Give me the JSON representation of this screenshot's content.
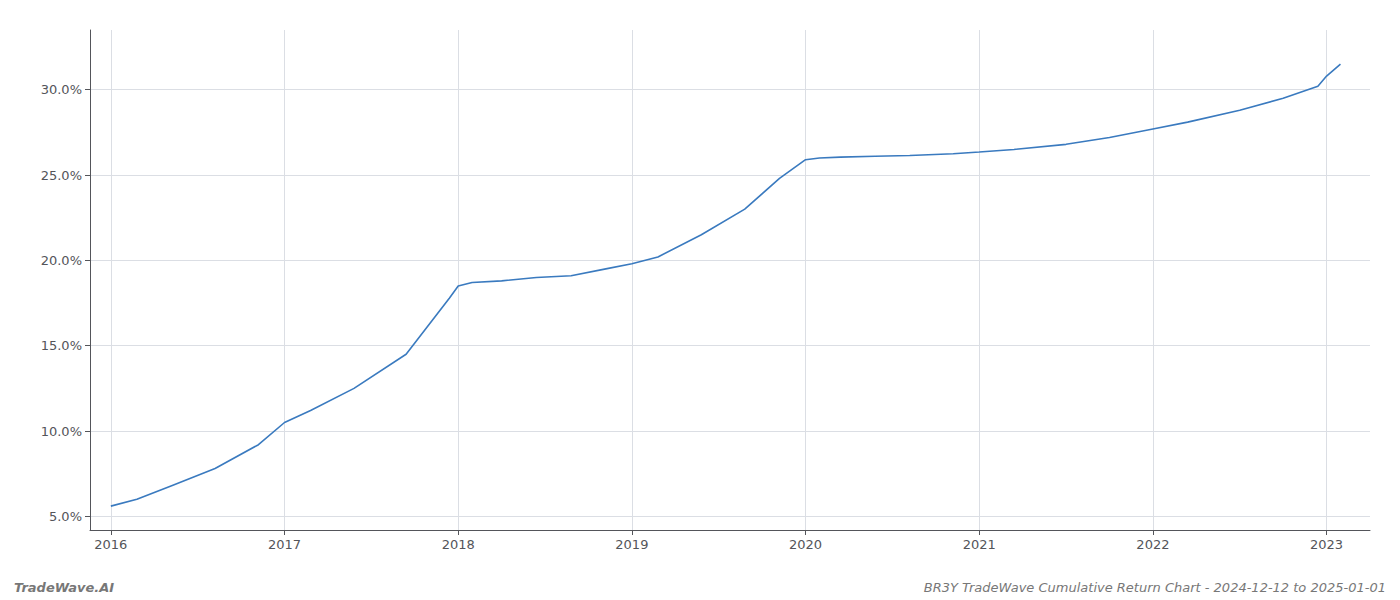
{
  "chart_data": {
    "type": "line",
    "x": [
      2016.0,
      2016.15,
      2016.35,
      2016.6,
      2016.85,
      2017.0,
      2017.15,
      2017.4,
      2017.7,
      2017.95,
      2018.0,
      2018.08,
      2018.25,
      2018.45,
      2018.65,
      2018.85,
      2019.0,
      2019.15,
      2019.4,
      2019.65,
      2019.85,
      2020.0,
      2020.08,
      2020.2,
      2020.4,
      2020.6,
      2020.85,
      2021.0,
      2021.2,
      2021.5,
      2021.75,
      2022.0,
      2022.2,
      2022.5,
      2022.75,
      2022.95,
      2023.0,
      2023.08
    ],
    "values": [
      5.6,
      6.0,
      6.8,
      7.8,
      9.2,
      10.5,
      11.2,
      12.5,
      14.5,
      17.8,
      18.5,
      18.7,
      18.8,
      19.0,
      19.1,
      19.5,
      19.8,
      20.2,
      21.5,
      23.0,
      24.8,
      25.9,
      26.0,
      26.05,
      26.1,
      26.15,
      26.25,
      26.35,
      26.5,
      26.8,
      27.2,
      27.7,
      28.1,
      28.8,
      29.5,
      30.2,
      30.8,
      31.5
    ],
    "color": "#3a7abf",
    "xlim": [
      2015.88,
      2023.25
    ],
    "ylim": [
      4.2,
      33.5
    ],
    "xticks": [
      2016,
      2017,
      2018,
      2019,
      2020,
      2021,
      2022,
      2023
    ],
    "yticks": [
      {
        "value": 5.0,
        "label": "5.0%"
      },
      {
        "value": 10.0,
        "label": "10.0%"
      },
      {
        "value": 15.0,
        "label": "15.0%"
      },
      {
        "value": 20.0,
        "label": "20.0%"
      },
      {
        "value": 25.0,
        "label": "25.0%"
      },
      {
        "value": 30.0,
        "label": "30.0%"
      }
    ],
    "grid": true,
    "annotations": [
      "TradeWave.AI",
      "BR3Y TradeWave Cumulative Return Chart - 2024-12-12 to 2025-01-01"
    ]
  }
}
